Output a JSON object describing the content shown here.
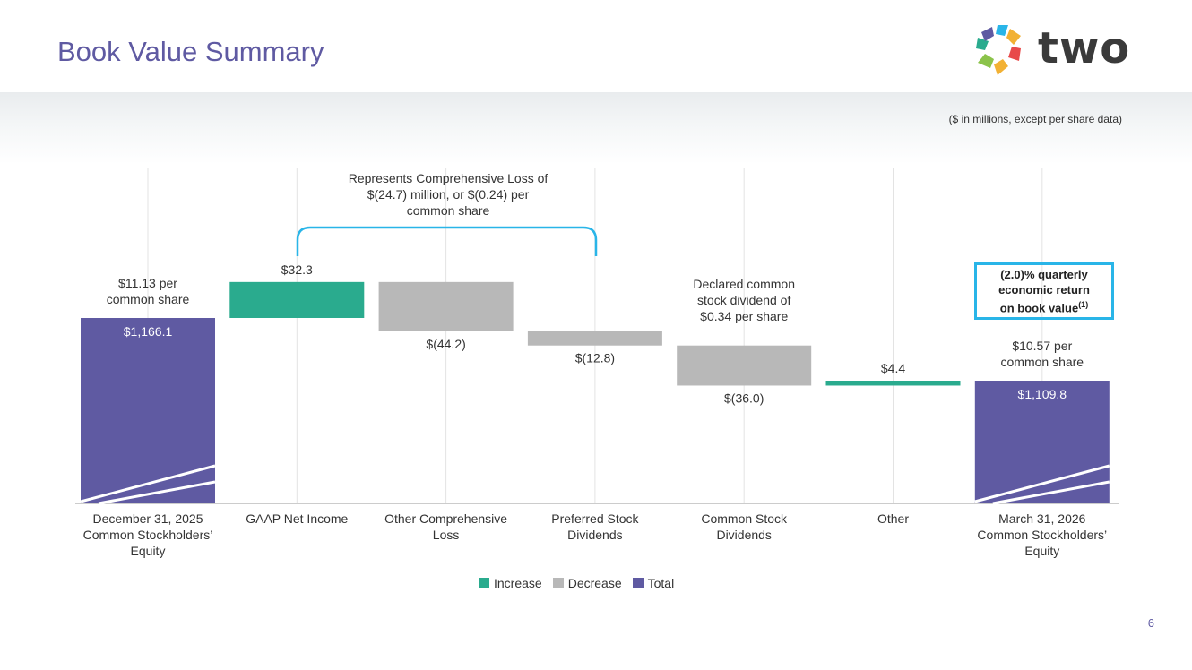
{
  "page": {
    "title": "Book Value Summary",
    "units_note": "($ in millions, except per share data)",
    "page_number": "6",
    "logo_text": "two"
  },
  "colors": {
    "increase": "#2aab8e",
    "decrease": "#b8b8b8",
    "total": "#5f5aa2",
    "callout_border": "#29b5e8",
    "bracket": "#29b5e8",
    "title": "#5f5aa2"
  },
  "callout": {
    "line1": "(2.0)% quarterly",
    "line2": "economic return",
    "line3": "on book value",
    "superscript": "(1)"
  },
  "chart_data": {
    "type": "waterfall",
    "title": "",
    "ylim": [
      850,
      1200
    ],
    "grid": "vertical",
    "legend_position": "bottom-center",
    "legend": [
      "Increase",
      "Decrease",
      "Total"
    ],
    "categories": [
      "December 31, 2025 Common Stockholders' Equity",
      "GAAP Net Income",
      "Other Comprehensive Loss",
      "Preferred Stock Dividends",
      "Common Stock Dividends",
      "Other",
      "March 31, 2026 Common Stockholders' Equity"
    ],
    "category_lines": [
      [
        "December 31, 2025",
        "Common Stockholders’",
        "Equity"
      ],
      [
        "GAAP Net Income"
      ],
      [
        "Other Comprehensive",
        "Loss"
      ],
      [
        "Preferred Stock",
        "Dividends"
      ],
      [
        "Common Stock",
        "Dividends"
      ],
      [
        "Other"
      ],
      [
        "March 31, 2026",
        "Common Stockholders’",
        "Equity"
      ]
    ],
    "bars": [
      {
        "kind": "total",
        "value": 1166.1,
        "label": "$1,166.1"
      },
      {
        "kind": "increase",
        "value": 32.3,
        "label": "$32.3"
      },
      {
        "kind": "decrease",
        "value": -44.2,
        "label": "$(44.2)"
      },
      {
        "kind": "decrease",
        "value": -12.8,
        "label": "$(12.8)"
      },
      {
        "kind": "decrease",
        "value": -36.0,
        "label": "$(36.0)"
      },
      {
        "kind": "increase",
        "value": 4.4,
        "label": "$4.4"
      },
      {
        "kind": "total",
        "value": 1109.8,
        "label": "$1,109.8"
      }
    ],
    "annotations": {
      "start_per_share": [
        "$11.13 per",
        "common share"
      ],
      "end_per_share": [
        "$10.57 per",
        "common share"
      ],
      "comprehensive_loss": [
        "Represents Comprehensive Loss of",
        "$(24.7) million, or $(0.24) per",
        "common share"
      ],
      "dividend_note": [
        "Declared common",
        "stock dividend of",
        "$0.34 per share"
      ]
    }
  }
}
